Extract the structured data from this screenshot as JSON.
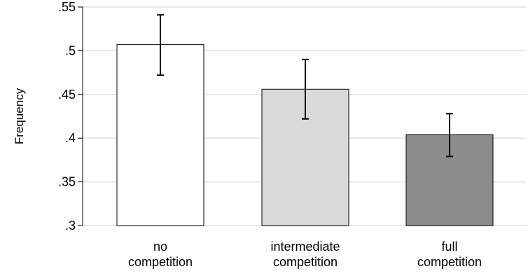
{
  "chart_data": {
    "type": "bar",
    "title": "",
    "xlabel": "",
    "ylabel": "Frequency",
    "ylim": [
      0.3,
      0.55
    ],
    "yticks": [
      {
        "value": 0.3,
        "label": ".3"
      },
      {
        "value": 0.35,
        "label": ".35"
      },
      {
        "value": 0.4,
        "label": ".4"
      },
      {
        "value": 0.45,
        "label": ".45"
      },
      {
        "value": 0.5,
        "label": ".5"
      },
      {
        "value": 0.55,
        "label": ".55"
      }
    ],
    "grid": true,
    "categories": [
      {
        "lines": [
          "no",
          "competition"
        ]
      },
      {
        "lines": [
          "intermediate",
          "competition"
        ]
      },
      {
        "lines": [
          "full",
          "competition"
        ]
      }
    ],
    "values": [
      0.507,
      0.456,
      0.404
    ],
    "error_low": [
      0.472,
      0.422,
      0.379
    ],
    "error_high": [
      0.541,
      0.49,
      0.428
    ],
    "bar_colors": [
      "#ffffff",
      "#d9d9d9",
      "#8c8c8c"
    ],
    "bar_stroke": "#000000",
    "grid_color": "#e2e2e2"
  }
}
